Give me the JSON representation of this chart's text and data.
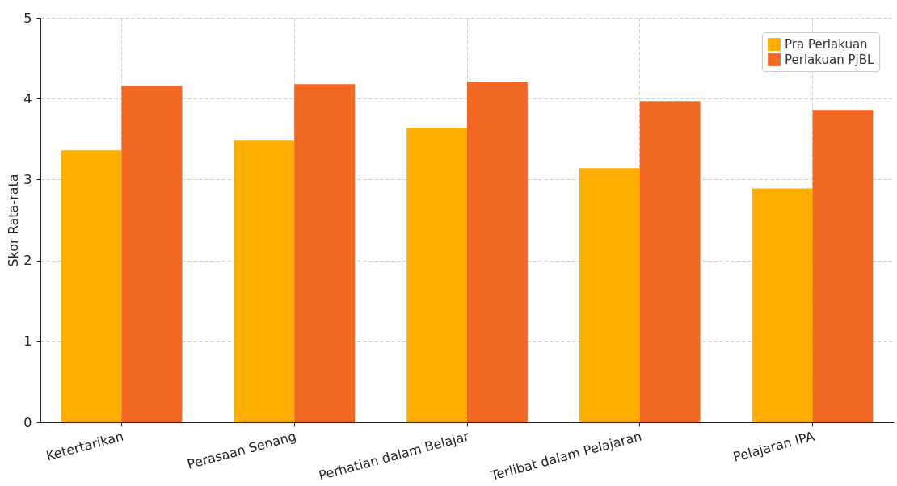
{
  "chart_data": {
    "type": "bar",
    "ylabel": "Skor Rata-rata",
    "categories": [
      "Ketertarikan",
      "Perasaan Senang",
      "Perhatian dalam Belajar",
      "Terlibat dalam Pelajaran",
      "Pelajaran IPA"
    ],
    "series": [
      {
        "name": "Pra Perlakuan",
        "color": "#ffad00",
        "values": [
          3.36,
          3.48,
          3.64,
          3.14,
          2.89
        ]
      },
      {
        "name": "Perlakuan PjBL",
        "color": "#f26822",
        "values": [
          4.16,
          4.18,
          4.21,
          3.97,
          3.86
        ]
      }
    ],
    "ylim": [
      0,
      5
    ],
    "yticks": [
      0,
      1,
      2,
      3,
      4,
      5
    ],
    "grid": true,
    "legend": "top right"
  }
}
